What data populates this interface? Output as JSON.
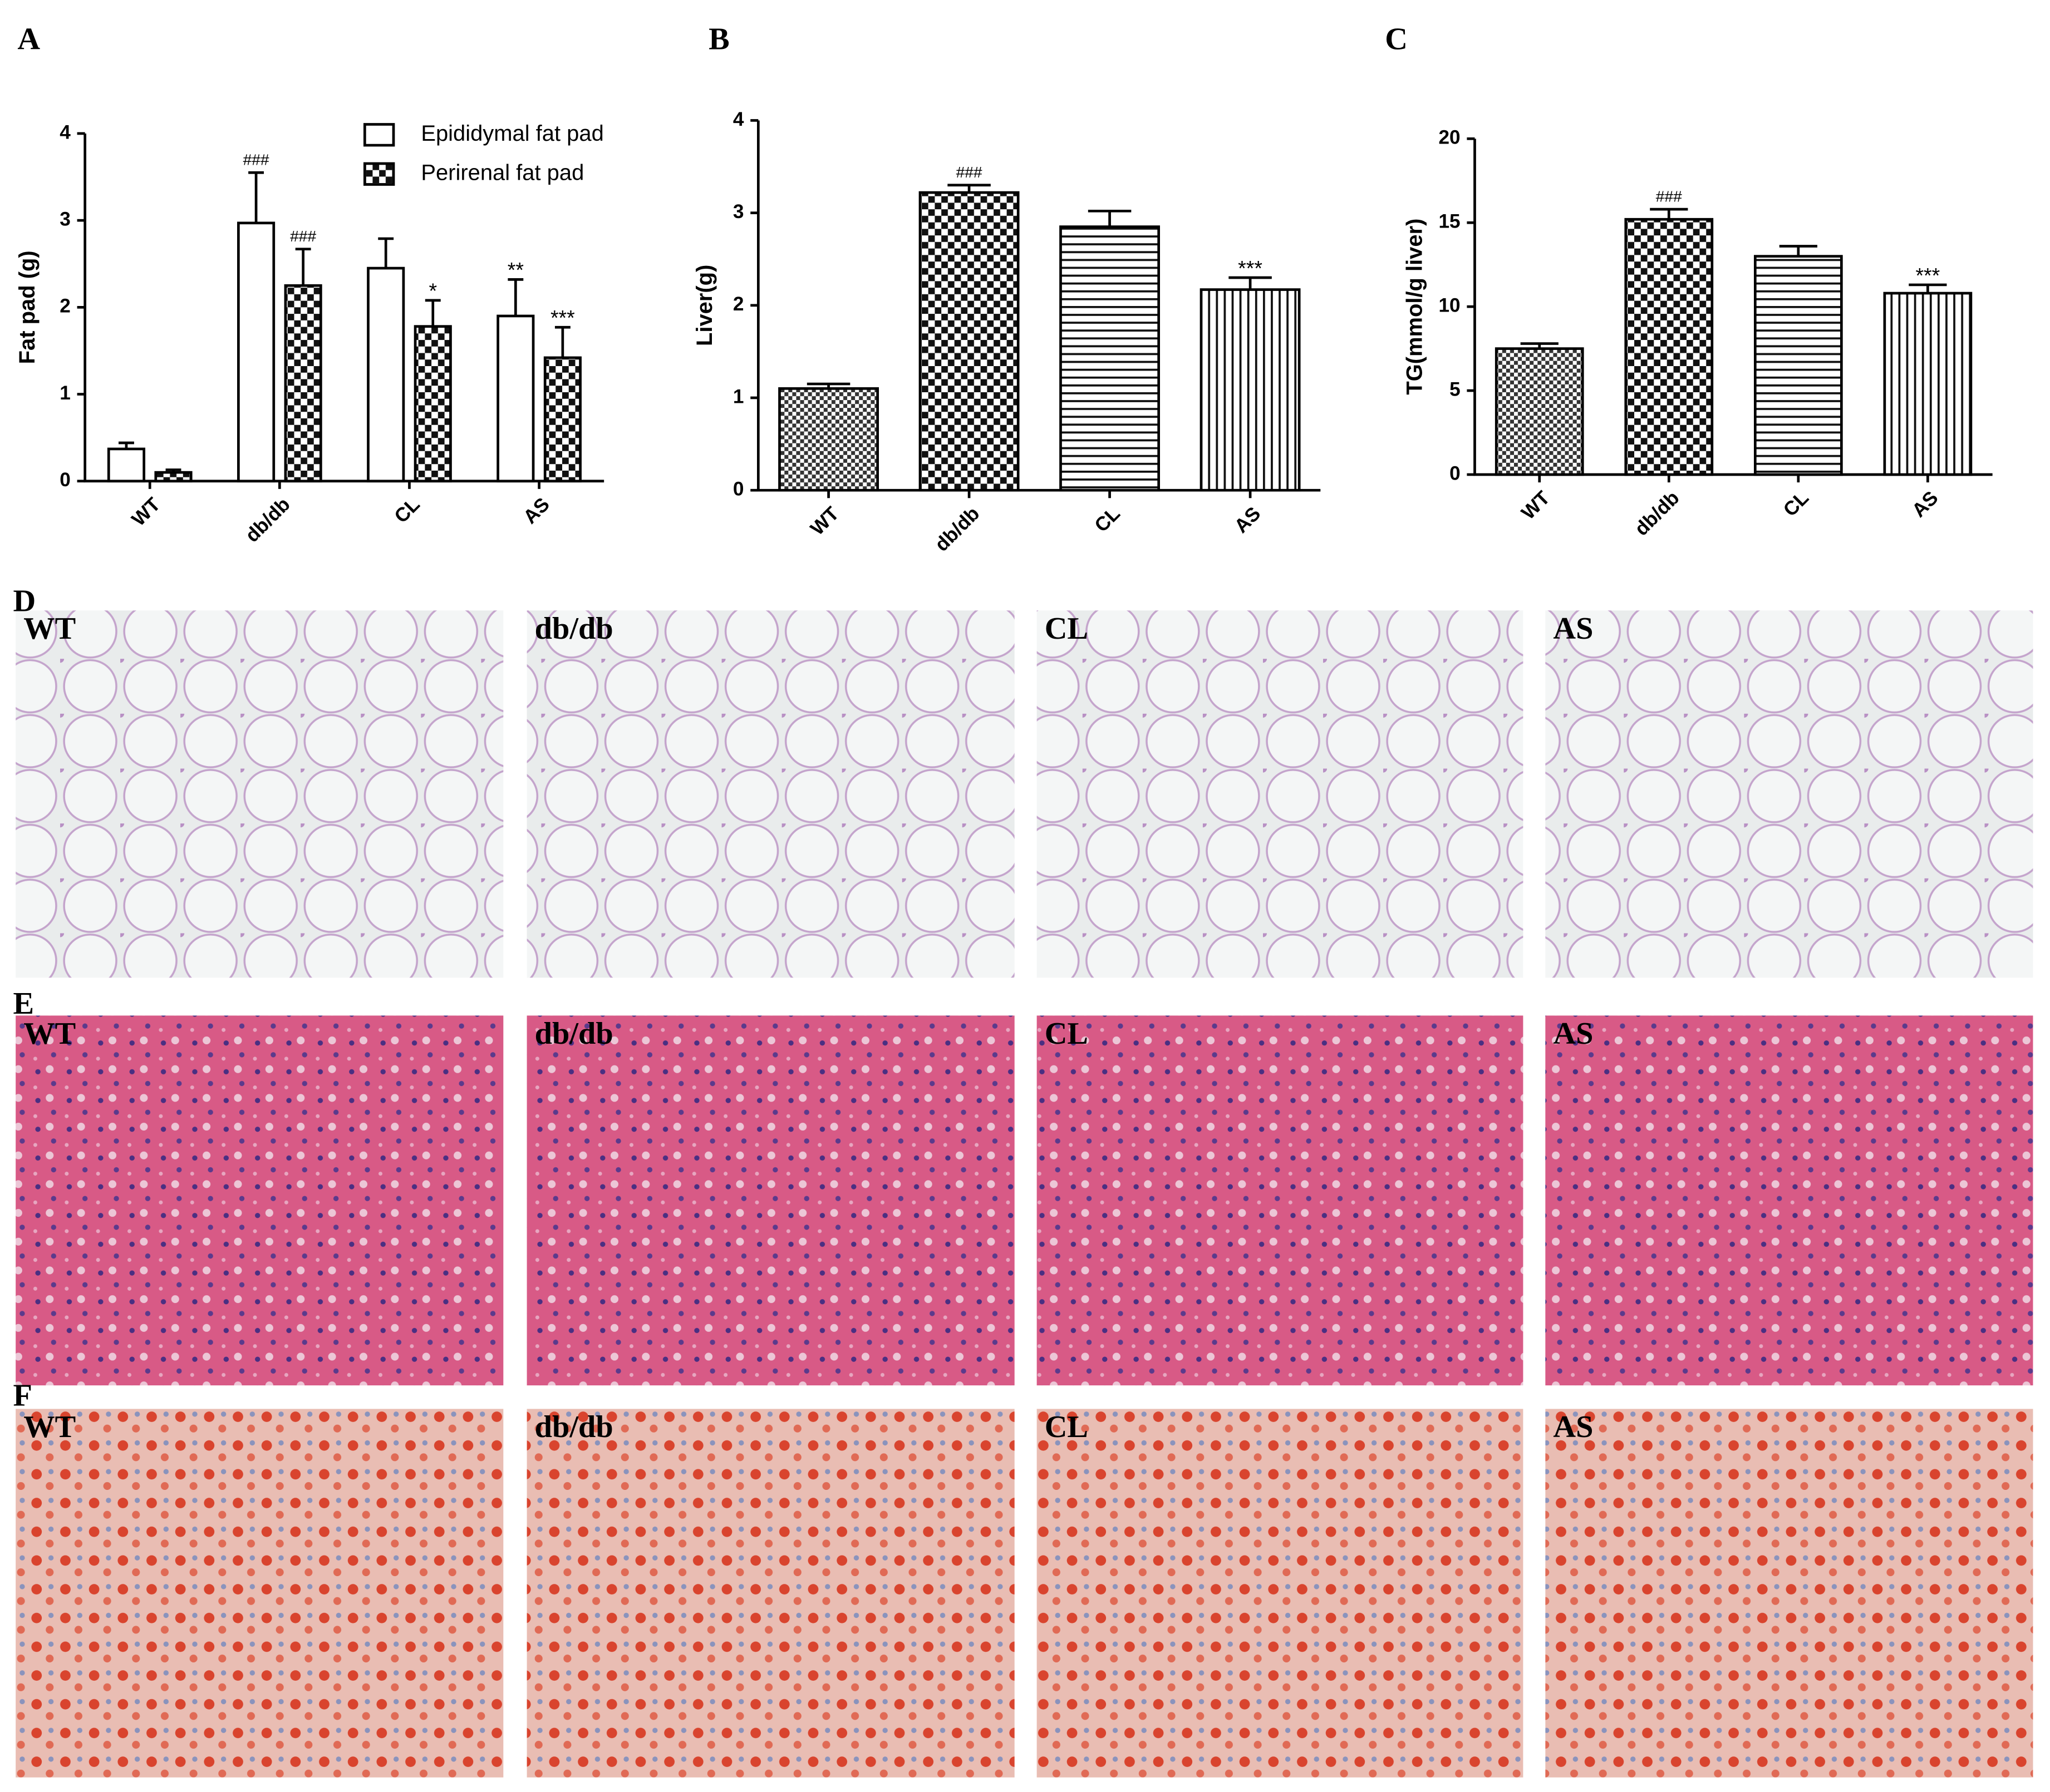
{
  "chart_data": [
    {
      "type": "bar",
      "panel": "A",
      "ylabel": "Fat pad (g)",
      "categories": [
        "WT",
        "db/db",
        "CL",
        "AS"
      ],
      "series": [
        {
          "name": "Epididymal fat pad",
          "pattern": "open",
          "values": [
            0.37,
            2.97,
            2.45,
            1.9
          ],
          "errors": [
            0.07,
            0.58,
            0.34,
            0.42
          ],
          "annotations": [
            null,
            "###",
            null,
            "**"
          ]
        },
        {
          "name": "Perirenal fat pad",
          "pattern": "check",
          "values": [
            0.1,
            2.25,
            1.78,
            1.42
          ],
          "errors": [
            0.03,
            0.42,
            0.3,
            0.35
          ],
          "annotations": [
            null,
            "###",
            "*",
            "***"
          ]
        }
      ],
      "ylim": [
        0,
        4
      ],
      "yticks": [
        0,
        1,
        2,
        3,
        4
      ]
    },
    {
      "type": "bar",
      "panel": "B",
      "ylabel": "Liver(g)",
      "categories": [
        "WT",
        "db/db",
        "CL",
        "AS"
      ],
      "values": [
        1.1,
        3.22,
        2.85,
        2.17
      ],
      "errors": [
        0.05,
        0.08,
        0.17,
        0.13
      ],
      "annotations": [
        null,
        "###",
        null,
        "***"
      ],
      "patterns": [
        "fine-check",
        "check",
        "horizontal",
        "vertical"
      ],
      "ylim": [
        0,
        4
      ],
      "yticks": [
        0,
        1,
        2,
        3,
        4
      ]
    },
    {
      "type": "bar",
      "panel": "C",
      "ylabel": "TG(mmol/g liver)",
      "categories": [
        "WT",
        "db/db",
        "CL",
        "AS"
      ],
      "values": [
        7.5,
        15.2,
        13.0,
        10.8
      ],
      "errors": [
        0.3,
        0.6,
        0.6,
        0.5
      ],
      "annotations": [
        null,
        "###",
        null,
        "***"
      ],
      "patterns": [
        "fine-check",
        "check",
        "horizontal",
        "vertical"
      ],
      "ylim": [
        0,
        20
      ],
      "yticks": [
        0,
        5,
        10,
        15,
        20
      ]
    }
  ],
  "micrographs": [
    {
      "panel": "D",
      "labels": [
        "WT",
        "db/db",
        "CL",
        "AS"
      ]
    },
    {
      "panel": "E",
      "labels": [
        "WT",
        "db/db",
        "CL",
        "AS"
      ]
    },
    {
      "panel": "F",
      "labels": [
        "WT",
        "db/db",
        "CL",
        "AS"
      ]
    }
  ]
}
